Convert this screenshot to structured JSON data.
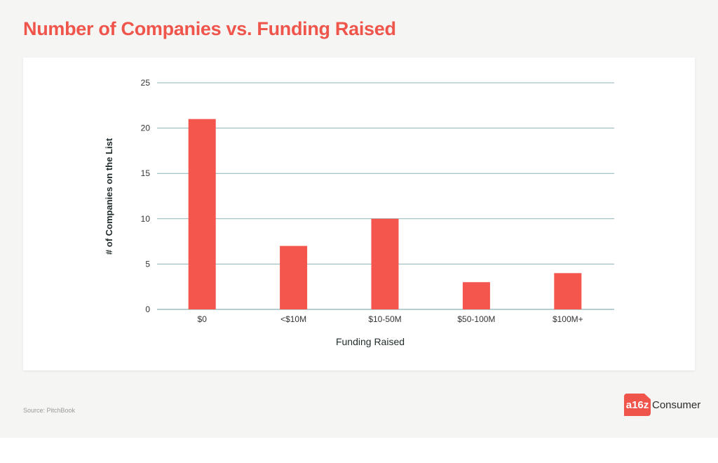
{
  "title": "Number of Companies vs. Funding Raised",
  "source": "Source: PitchBook",
  "logo": {
    "mark": "a16z",
    "text": "Consumer",
    "color": "#f0554b"
  },
  "chart_data": {
    "type": "bar",
    "categories": [
      "$0",
      "<$10M",
      "$10-50M",
      "$50-100M",
      "$100M+"
    ],
    "values": [
      21,
      7,
      10,
      3,
      4
    ],
    "xlabel": "Funding Raised",
    "ylabel": "# of Companies on the List",
    "ylim": [
      0,
      25
    ],
    "yticks": [
      0,
      5,
      10,
      15,
      20,
      25
    ],
    "grid": true,
    "bar_color": "#f4554c",
    "grid_color": "#8ab4b8"
  }
}
